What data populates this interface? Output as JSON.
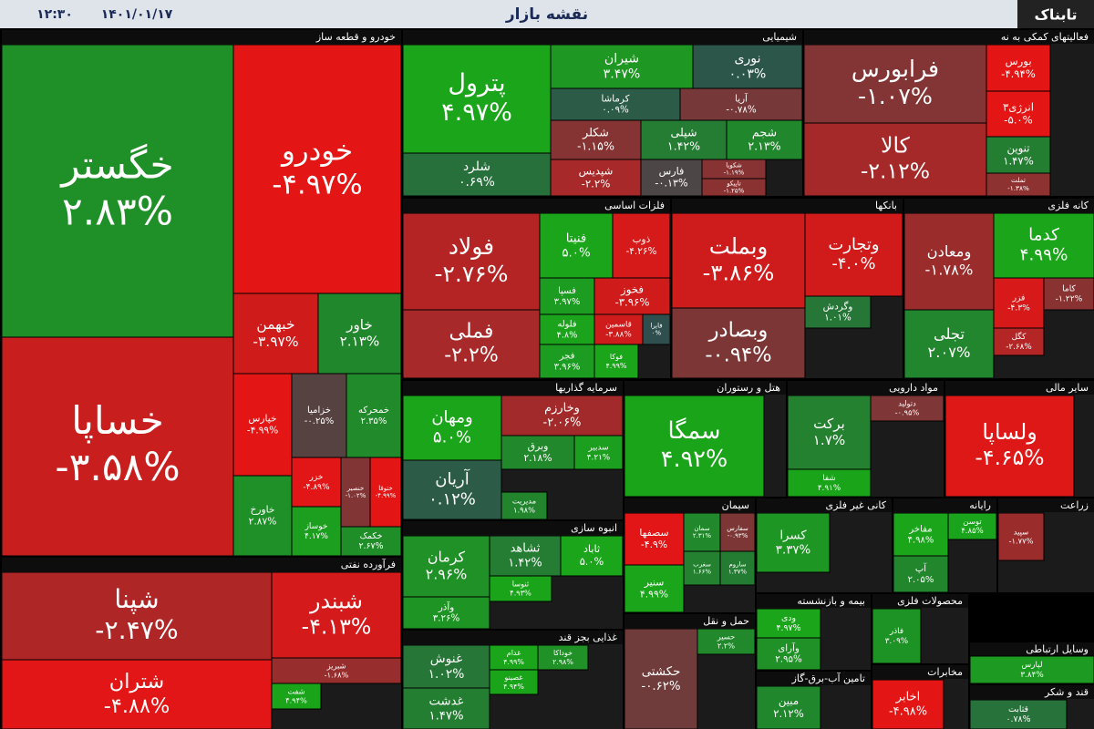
{
  "header": {
    "title": "نقشه بازار",
    "date": "۱۴۰۱/۰۱/۱۷",
    "time": "۱۲:۳۰",
    "logo": "تابناک"
  },
  "chart_data": {
    "type": "treemap",
    "color_scale": {
      "neutral": "#2f4f4f",
      "up": "#1aa51a",
      "down": "#e41515"
    },
    "sectors": [
      {
        "name": "خودرو و قطعه ساز",
        "names": [
          "خگستر",
          "خودرو",
          "خساپا",
          "خبهمن",
          "خاور",
          "خپارس",
          "خزامیا",
          "خمحرکه",
          "خاورخ",
          "خزر",
          "خنصیر",
          "ختوقا",
          "خوساز",
          "خکمک"
        ],
        "values": [
          2.83,
          -4.97,
          -3.58,
          -3.97,
          2.13,
          -4.99,
          -0.25,
          2.35,
          2.87,
          -4.89,
          -1.02,
          -4.99,
          4.17,
          2.67
        ],
        "value_labels": [
          "۲.۸۳%",
          "-۴.۹۷%",
          "-۳.۵۸%",
          "-۳.۹۷%",
          "۲.۱۳%",
          "-۴.۹۹%",
          "-۰.۲۵%",
          "۲.۳۵%",
          "۲.۸۷%",
          "-۴.۸۹%",
          "-۱.۰۲%",
          "-۴.۹۹%",
          "۴.۱۷%",
          "۲.۶۷%"
        ]
      },
      {
        "name": "فرآورده نفتی",
        "names": [
          "شپنا",
          "شبندر",
          "شتران",
          "شبریز",
          "شفت"
        ],
        "values": [
          -2.47,
          -4.13,
          -4.88,
          -1.68,
          4.94
        ],
        "value_labels": [
          "-۲.۴۷%",
          "-۴.۱۳%",
          "-۴.۸۸%",
          "-۱.۶۸%",
          "۴.۹۴%"
        ]
      },
      {
        "name": "شیمیایی",
        "names": [
          "پترول",
          "شیران",
          "نوری",
          "کرماشا",
          "آریا",
          "شلرد",
          "شکلر",
          "شپلی",
          "شجم",
          "شپدیس",
          "فارس",
          "شکویا",
          "تاپیکو"
        ],
        "values": [
          4.97,
          3.47,
          0.03,
          0.09,
          -0.78,
          0.69,
          -1.15,
          1.42,
          2.13,
          -2.2,
          -0.13,
          -1.19,
          -1.25
        ],
        "value_labels": [
          "۴.۹۷%",
          "۳.۴۷%",
          "۰.۰۳%",
          "۰.۰۹%",
          "-۰.۷۸%",
          "۰.۶۹%",
          "-۱.۱۵%",
          "۱.۴۲%",
          "۲.۱۳%",
          "-۲.۲%",
          "-۰.۱۳%",
          "-۱.۱۹%",
          "-۱.۲۵%"
        ]
      },
      {
        "name": "فعالیتهای کمکی به نه",
        "names": [
          "فرابورس",
          "کالا",
          "بورس",
          "انرژی۳",
          "تنوین",
          "تملت"
        ],
        "values": [
          -1.07,
          -2.12,
          -4.94,
          -5.0,
          1.47,
          -1.38
        ],
        "value_labels": [
          "-۱.۰۷%",
          "-۲.۱۲%",
          "-۴.۹۴%",
          "-۵.۰%",
          "۱.۴۷%",
          "-۱.۳۸%"
        ]
      },
      {
        "name": "فلزات اساسی",
        "names": [
          "فولاد",
          "فملی",
          "فنیتا",
          "ذوب",
          "فسپا",
          "فخوز",
          "فلوله",
          "قاسمین",
          "فایرا",
          "فجر",
          "فوکا"
        ],
        "values": [
          -2.76,
          -2.2,
          5.0,
          -4.26,
          3.97,
          -3.96,
          4.8,
          -3.88,
          0,
          3.96,
          4.99
        ],
        "value_labels": [
          "-۲.۷۶%",
          "-۲.۲%",
          "۵.۰%",
          "-۴.۲۶%",
          "۳.۹۷%",
          "-۳.۹۶%",
          "۴.۸%",
          "-۳.۸۸%",
          "۰%",
          "۳.۹۶%",
          "۴.۹۹%"
        ]
      },
      {
        "name": "بانکها",
        "names": [
          "وبملت",
          "وتجارت",
          "وبصادر",
          "وگردش"
        ],
        "values": [
          -3.86,
          -4.0,
          -0.94,
          1.01
        ],
        "value_labels": [
          "-۳.۸۶%",
          "-۴.۰%",
          "-۰.۹۴%",
          "۱.۰۱%"
        ]
      },
      {
        "name": "کانه فلزی",
        "names": [
          "ومعادن",
          "کدما",
          "تجلی",
          "فزر",
          "کاما",
          "کگل"
        ],
        "values": [
          -1.78,
          4.99,
          2.07,
          -4.3,
          -1.22,
          -2.68
        ],
        "value_labels": [
          "-۱.۷۸%",
          "۴.۹۹%",
          "۲.۰۷%",
          "-۴.۳%",
          "-۱.۲۲%",
          "-۲.۶۸%"
        ]
      },
      {
        "name": "سرمایه گذاریها",
        "names": [
          "ومهان",
          "آریان",
          "وخارزم",
          "وبرق",
          "سدبیر",
          "مدیریت"
        ],
        "values": [
          5.0,
          0.12,
          -2.06,
          2.18,
          4.21,
          1.98
        ],
        "value_labels": [
          "۵.۰%",
          "۰.۱۲%",
          "-۲.۰۶%",
          "۲.۱۸%",
          "۴.۲۱%",
          "۱.۹۸%"
        ]
      },
      {
        "name": "هتل و رستوران",
        "names": [
          "سمگا"
        ],
        "values": [
          4.92
        ],
        "value_labels": [
          "۴.۹۲%"
        ]
      },
      {
        "name": "مواد دارویی",
        "names": [
          "برکت",
          "شفا",
          "دتولید"
        ],
        "values": [
          1.7,
          4.91,
          -0.95
        ],
        "value_labels": [
          "۱.۷%",
          "۴.۹۱%",
          "-۰.۹۵%"
        ]
      },
      {
        "name": "سایر مالی",
        "names": [
          "ولساپا"
        ],
        "values": [
          -4.65
        ],
        "value_labels": [
          "-۴.۶۵%"
        ]
      },
      {
        "name": "انبوه سازی",
        "names": [
          "کرمان",
          "وآذر",
          "ثشاهد",
          "ثاباد",
          "ثنوسا"
        ],
        "values": [
          2.96,
          3.26,
          1.42,
          5.0,
          4.93
        ],
        "value_labels": [
          "۲.۹۶%",
          "۳.۲۶%",
          "۱.۴۲%",
          "۵.۰%",
          "۴.۹۳%"
        ]
      },
      {
        "name": "غذایی بجز قند",
        "names": [
          "غنوش",
          "غدشت",
          "غدام",
          "غصینو",
          "خوداکا"
        ],
        "values": [
          1.02,
          1.47,
          4.99,
          4.94,
          2.98
        ],
        "value_labels": [
          "۱.۰۲%",
          "۱.۴۷%",
          "۴.۹۹%",
          "۴.۹۴%",
          "۲.۹۸%"
        ]
      },
      {
        "name": "سیمان",
        "names": [
          "سصفها",
          "سنیر",
          "سمان",
          "سفارس",
          "سغرب",
          "ساروم"
        ],
        "values": [
          -4.9,
          4.99,
          2.31,
          -0.93,
          1.66,
          1.37
        ],
        "value_labels": [
          "-۴.۹%",
          "۴.۹۹%",
          "۲.۳۱%",
          "-۰.۹۳%",
          "۱.۶۶%",
          "۱.۳۷%"
        ]
      },
      {
        "name": "حمل و نقل",
        "names": [
          "حکشتی",
          "حسیر"
        ],
        "values": [
          -0.62,
          2.2
        ],
        "value_labels": [
          "-۰.۶۲%",
          "۲.۲%"
        ]
      },
      {
        "name": "کانی غیر فلزی",
        "names": [
          "کسرا"
        ],
        "values": [
          3.37
        ],
        "value_labels": [
          "۳.۳۷%"
        ]
      },
      {
        "name": "بیمه و بازنشسته",
        "names": [
          "ودی",
          "وآرای"
        ],
        "values": [
          4.97,
          2.95
        ],
        "value_labels": [
          "۴.۹۷%",
          "۲.۹۵%"
        ]
      },
      {
        "name": "تامین آب-برق-گاز",
        "names": [
          "مبین"
        ],
        "values": [
          2.12
        ],
        "value_labels": [
          "۲.۱۲%"
        ]
      },
      {
        "name": "رایانه",
        "names": [
          "مفاخر",
          "توسن",
          "آپ"
        ],
        "values": [
          4.98,
          4.85,
          2.05
        ],
        "value_labels": [
          "۴.۹۸%",
          "۴.۸۵%",
          "۲.۰۵%"
        ]
      },
      {
        "name": "زراعت",
        "names": [
          "سپید"
        ],
        "values": [
          -1.77
        ],
        "value_labels": [
          "-۱.۷۷%"
        ]
      },
      {
        "name": "محصولات فلزی",
        "names": [
          "فاذر"
        ],
        "values": [
          3.09
        ],
        "value_labels": [
          "۳.۰۹%"
        ]
      },
      {
        "name": "وسایل ارتباطی",
        "names": [
          "لپارس"
        ],
        "values": [
          3.84
        ],
        "value_labels": [
          "۳.۸۴%"
        ]
      },
      {
        "name": "قند و شکر",
        "names": [
          "قثابت"
        ],
        "values": [
          0.78
        ],
        "value_labels": [
          "۰.۷۸%"
        ]
      },
      {
        "name": "مخابرات",
        "names": [
          "اخابر"
        ],
        "values": [
          -4.98
        ],
        "value_labels": [
          "-۴.۹۸%"
        ]
      }
    ]
  }
}
